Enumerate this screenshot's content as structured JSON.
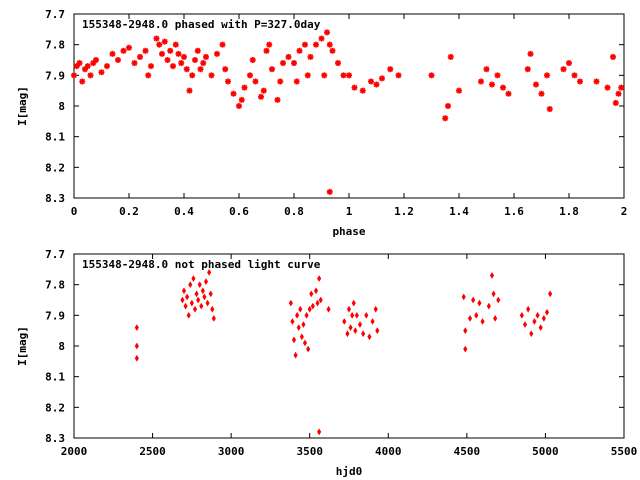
{
  "chart_data": [
    {
      "type": "scatter",
      "title": "155348-2948.0 phased with P=327.0day",
      "xlabel": "phase",
      "ylabel": "I[mag]",
      "xlim": [
        0,
        2
      ],
      "ylim": [
        8.3,
        7.7
      ],
      "y_inverted": true,
      "xticks": [
        "0",
        "0.2",
        "0.4",
        "0.6",
        "0.8",
        "1",
        "1.2",
        "1.4",
        "1.6",
        "1.8",
        "2"
      ],
      "yticks": [
        "7.7",
        "7.8",
        "7.9",
        "8",
        "8.1",
        "8.2",
        "8.3"
      ],
      "marker": "star",
      "color": "#ff0000",
      "series": [
        {
          "points": [
            [
              0.0,
              7.9
            ],
            [
              0.01,
              7.87
            ],
            [
              0.02,
              7.86
            ],
            [
              0.03,
              7.92
            ],
            [
              0.04,
              7.88
            ],
            [
              0.05,
              7.87
            ],
            [
              0.06,
              7.9
            ],
            [
              0.07,
              7.86
            ],
            [
              0.08,
              7.85
            ],
            [
              0.1,
              7.89
            ],
            [
              0.12,
              7.87
            ],
            [
              0.14,
              7.83
            ],
            [
              0.16,
              7.85
            ],
            [
              0.18,
              7.82
            ],
            [
              0.2,
              7.81
            ],
            [
              0.22,
              7.86
            ],
            [
              0.24,
              7.84
            ],
            [
              0.26,
              7.82
            ],
            [
              0.27,
              7.9
            ],
            [
              0.28,
              7.87
            ],
            [
              0.3,
              7.78
            ],
            [
              0.31,
              7.8
            ],
            [
              0.32,
              7.83
            ],
            [
              0.33,
              7.79
            ],
            [
              0.34,
              7.85
            ],
            [
              0.35,
              7.82
            ],
            [
              0.36,
              7.87
            ],
            [
              0.37,
              7.8
            ],
            [
              0.38,
              7.83
            ],
            [
              0.39,
              7.86
            ],
            [
              0.4,
              7.84
            ],
            [
              0.41,
              7.88
            ],
            [
              0.42,
              7.95
            ],
            [
              0.43,
              7.9
            ],
            [
              0.44,
              7.85
            ],
            [
              0.45,
              7.82
            ],
            [
              0.46,
              7.88
            ],
            [
              0.47,
              7.86
            ],
            [
              0.48,
              7.84
            ],
            [
              0.5,
              7.9
            ],
            [
              0.52,
              7.83
            ],
            [
              0.54,
              7.8
            ],
            [
              0.55,
              7.88
            ],
            [
              0.56,
              7.92
            ],
            [
              0.58,
              7.96
            ],
            [
              0.6,
              8.0
            ],
            [
              0.61,
              7.98
            ],
            [
              0.62,
              7.94
            ],
            [
              0.64,
              7.9
            ],
            [
              0.65,
              7.85
            ],
            [
              0.66,
              7.92
            ],
            [
              0.68,
              7.97
            ],
            [
              0.69,
              7.95
            ],
            [
              0.7,
              7.82
            ],
            [
              0.71,
              7.8
            ],
            [
              0.72,
              7.88
            ],
            [
              0.74,
              7.98
            ],
            [
              0.75,
              7.92
            ],
            [
              0.76,
              7.86
            ],
            [
              0.78,
              7.84
            ],
            [
              0.8,
              7.86
            ],
            [
              0.81,
              7.92
            ],
            [
              0.82,
              7.82
            ],
            [
              0.84,
              7.8
            ],
            [
              0.85,
              7.9
            ],
            [
              0.86,
              7.84
            ],
            [
              0.88,
              7.8
            ],
            [
              0.9,
              7.78
            ],
            [
              0.91,
              7.9
            ],
            [
              0.92,
              7.76
            ],
            [
              0.93,
              7.8
            ],
            [
              0.93,
              8.28
            ],
            [
              0.94,
              7.82
            ],
            [
              0.96,
              7.86
            ],
            [
              0.98,
              7.9
            ],
            [
              1.0,
              7.9
            ],
            [
              1.02,
              7.94
            ],
            [
              1.05,
              7.95
            ],
            [
              1.08,
              7.92
            ],
            [
              1.1,
              7.93
            ],
            [
              1.12,
              7.91
            ],
            [
              1.15,
              7.88
            ],
            [
              1.18,
              7.9
            ],
            [
              1.3,
              7.9
            ],
            [
              1.35,
              8.04
            ],
            [
              1.36,
              8.0
            ],
            [
              1.37,
              7.84
            ],
            [
              1.4,
              7.95
            ],
            [
              1.48,
              7.92
            ],
            [
              1.5,
              7.88
            ],
            [
              1.52,
              7.93
            ],
            [
              1.54,
              7.9
            ],
            [
              1.56,
              7.94
            ],
            [
              1.58,
              7.96
            ],
            [
              1.65,
              7.88
            ],
            [
              1.66,
              7.83
            ],
            [
              1.68,
              7.93
            ],
            [
              1.7,
              7.96
            ],
            [
              1.72,
              7.9
            ],
            [
              1.73,
              8.01
            ],
            [
              1.78,
              7.88
            ],
            [
              1.8,
              7.86
            ],
            [
              1.82,
              7.9
            ],
            [
              1.84,
              7.92
            ],
            [
              1.9,
              7.92
            ],
            [
              1.94,
              7.94
            ],
            [
              1.96,
              7.84
            ],
            [
              1.97,
              7.99
            ],
            [
              1.98,
              7.96
            ],
            [
              1.99,
              7.94
            ]
          ]
        }
      ]
    },
    {
      "type": "scatter",
      "title": "155348-2948.0 not phased light curve",
      "xlabel": "hjd0",
      "ylabel": "I[mag]",
      "xlim": [
        2000,
        5500
      ],
      "ylim": [
        8.3,
        7.7
      ],
      "y_inverted": true,
      "xticks": [
        "2000",
        "2500",
        "3000",
        "3500",
        "4000",
        "4500",
        "5000",
        "5500"
      ],
      "yticks": [
        "7.7",
        "7.8",
        "7.9",
        "8",
        "8.1",
        "8.2",
        "8.3"
      ],
      "marker": "diamond",
      "color": "#ff0000",
      "series": [
        {
          "points": [
            [
              2400,
              7.94
            ],
            [
              2400,
              8.0
            ],
            [
              2400,
              8.04
            ],
            [
              2690,
              7.85
            ],
            [
              2700,
              7.82
            ],
            [
              2710,
              7.87
            ],
            [
              2720,
              7.84
            ],
            [
              2730,
              7.9
            ],
            [
              2740,
              7.8
            ],
            [
              2750,
              7.86
            ],
            [
              2760,
              7.78
            ],
            [
              2770,
              7.88
            ],
            [
              2780,
              7.83
            ],
            [
              2790,
              7.85
            ],
            [
              2800,
              7.8
            ],
            [
              2810,
              7.87
            ],
            [
              2820,
              7.82
            ],
            [
              2830,
              7.84
            ],
            [
              2840,
              7.79
            ],
            [
              2850,
              7.86
            ],
            [
              2860,
              7.76
            ],
            [
              2870,
              7.83
            ],
            [
              2880,
              7.88
            ],
            [
              2890,
              7.91
            ],
            [
              3380,
              7.86
            ],
            [
              3390,
              7.92
            ],
            [
              3400,
              7.98
            ],
            [
              3410,
              8.03
            ],
            [
              3420,
              7.9
            ],
            [
              3430,
              7.94
            ],
            [
              3440,
              7.88
            ],
            [
              3450,
              7.97
            ],
            [
              3460,
              7.93
            ],
            [
              3470,
              7.99
            ],
            [
              3480,
              7.9
            ],
            [
              3490,
              8.01
            ],
            [
              3500,
              7.88
            ],
            [
              3510,
              7.83
            ],
            [
              3520,
              7.87
            ],
            [
              3540,
              7.82
            ],
            [
              3550,
              7.86
            ],
            [
              3560,
              7.78
            ],
            [
              3570,
              7.85
            ],
            [
              3560,
              8.28
            ],
            [
              3620,
              7.88
            ],
            [
              3720,
              7.92
            ],
            [
              3740,
              7.96
            ],
            [
              3750,
              7.88
            ],
            [
              3760,
              7.94
            ],
            [
              3770,
              7.9
            ],
            [
              3780,
              7.86
            ],
            [
              3790,
              7.95
            ],
            [
              3800,
              7.9
            ],
            [
              3820,
              7.93
            ],
            [
              3840,
              7.96
            ],
            [
              3860,
              7.9
            ],
            [
              3880,
              7.97
            ],
            [
              3900,
              7.92
            ],
            [
              3920,
              7.88
            ],
            [
              3930,
              7.95
            ],
            [
              4480,
              7.84
            ],
            [
              4490,
              7.95
            ],
            [
              4490,
              8.01
            ],
            [
              4520,
              7.91
            ],
            [
              4540,
              7.85
            ],
            [
              4560,
              7.9
            ],
            [
              4580,
              7.86
            ],
            [
              4600,
              7.92
            ],
            [
              4640,
              7.87
            ],
            [
              4660,
              7.77
            ],
            [
              4670,
              7.83
            ],
            [
              4680,
              7.91
            ],
            [
              4700,
              7.85
            ],
            [
              4850,
              7.9
            ],
            [
              4870,
              7.93
            ],
            [
              4890,
              7.88
            ],
            [
              4910,
              7.96
            ],
            [
              4930,
              7.92
            ],
            [
              4950,
              7.9
            ],
            [
              4970,
              7.94
            ],
            [
              4990,
              7.91
            ],
            [
              5010,
              7.89
            ],
            [
              5030,
              7.83
            ]
          ]
        }
      ]
    }
  ]
}
